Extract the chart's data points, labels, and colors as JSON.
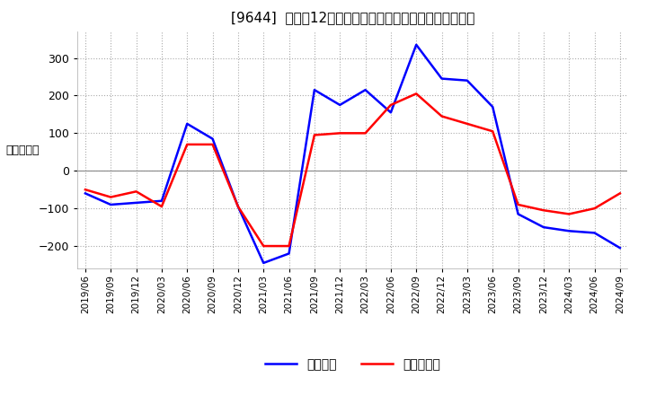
{
  "title": "[9644]  利益の12か月移動合計の対前年同期増減額の推移",
  "ylabel": "（百万円）",
  "line1_label": "経常利益",
  "line2_label": "当期純利益",
  "line1_color": "#0000FF",
  "line2_color": "#FF0000",
  "background_color": "#FFFFFF",
  "ylim": [
    -260,
    370
  ],
  "yticks": [
    -200,
    -100,
    0,
    100,
    200,
    300
  ],
  "x_labels": [
    "2019/06",
    "2019/09",
    "2019/12",
    "2020/03",
    "2020/06",
    "2020/09",
    "2020/12",
    "2021/03",
    "2021/06",
    "2021/09",
    "2021/12",
    "2022/03",
    "2022/06",
    "2022/09",
    "2022/12",
    "2023/03",
    "2023/06",
    "2023/09",
    "2023/12",
    "2024/03",
    "2024/06",
    "2024/09"
  ],
  "line1_values": [
    -60,
    -90,
    -85,
    -80,
    125,
    85,
    -95,
    -245,
    -220,
    215,
    175,
    215,
    155,
    335,
    245,
    240,
    170,
    -115,
    -150,
    -160,
    -165,
    -205
  ],
  "line2_values": [
    -50,
    -70,
    -55,
    -95,
    70,
    70,
    -95,
    -200,
    -200,
    95,
    100,
    100,
    175,
    205,
    145,
    125,
    105,
    -90,
    -105,
    -115,
    -100,
    -60
  ]
}
